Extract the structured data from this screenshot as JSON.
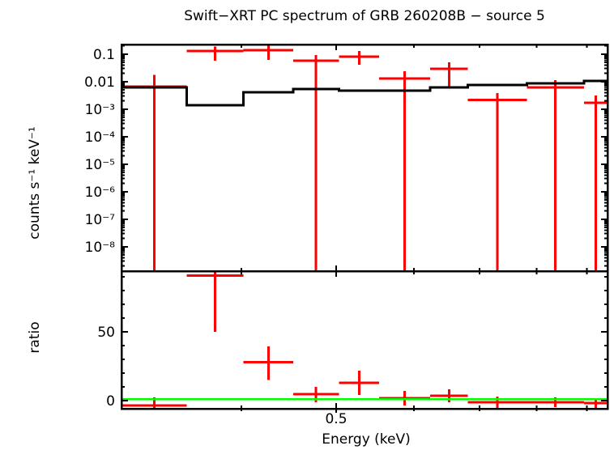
{
  "title": "Swift−XRT PC spectrum of GRB 260208B − source 5",
  "colors": {
    "background": "#ffffff",
    "frame": "#000000",
    "data": "#ff0000",
    "model": "#000000",
    "reference_line": "#00ff00",
    "text": "#000000"
  },
  "chart_data": {
    "type": "scatter",
    "description": "X-ray spectrum: top panel shows background-subtracted count spectrum (red crosses with 1-sigma errors) and folded model (black step line); bottom panel shows data/model ratio with green line at ratio = 1.",
    "xlabel": "Energy (keV)",
    "x_scale": "log",
    "xlim_kev": [
      0.302,
      0.945
    ],
    "x_tick_labeled": {
      "value": 0.5,
      "label": "0.5"
    },
    "x_ticks_minor_kev": [
      0.3,
      0.4,
      0.6,
      0.7,
      0.8,
      0.9
    ],
    "bin_edges_kev": [
      0.302,
      0.352,
      0.402,
      0.452,
      0.503,
      0.553,
      0.623,
      0.681,
      0.782,
      0.894,
      0.945
    ],
    "spectrum_panel": {
      "ylabel": "counts s⁻¹ keV⁻¹",
      "y_scale": "log",
      "ylim": [
        1.3e-09,
        0.225
      ],
      "y_tick_labels": [
        {
          "value": 0.1,
          "label": "0.1"
        },
        {
          "value": 0.01,
          "label": "0.01"
        },
        {
          "value": 0.001,
          "label": "10⁻³"
        },
        {
          "value": 0.0001,
          "label": "10⁻⁴"
        },
        {
          "value": 1e-05,
          "label": "10⁻⁵"
        },
        {
          "value": 1e-06,
          "label": "10⁻⁶"
        },
        {
          "value": 1e-07,
          "label": "10⁻⁷"
        },
        {
          "value": 1e-08,
          "label": "10⁻⁸"
        }
      ],
      "data_points": [
        {
          "e_lo": 0.302,
          "e_hi": 0.352,
          "value": 0.0067,
          "err_hi": 0.018,
          "err_lo": null
        },
        {
          "e_lo": 0.352,
          "e_hi": 0.402,
          "value": 0.131,
          "err_hi": 0.19,
          "err_lo": 0.058
        },
        {
          "e_lo": 0.402,
          "e_hi": 0.452,
          "value": 0.14,
          "err_hi": 0.2,
          "err_lo": 0.062
        },
        {
          "e_lo": 0.452,
          "e_hi": 0.503,
          "value": 0.058,
          "err_hi": 0.093,
          "err_lo": null
        },
        {
          "e_lo": 0.503,
          "e_hi": 0.553,
          "value": 0.082,
          "err_hi": 0.132,
          "err_lo": 0.041
        },
        {
          "e_lo": 0.553,
          "e_hi": 0.623,
          "value": 0.0131,
          "err_hi": 0.024,
          "err_lo": null
        },
        {
          "e_lo": 0.623,
          "e_hi": 0.681,
          "value": 0.0296,
          "err_hi": 0.051,
          "err_lo": 0.0067
        },
        {
          "e_lo": 0.681,
          "e_hi": 0.782,
          "value": 0.0022,
          "err_hi": 0.0038,
          "err_lo": null
        },
        {
          "e_lo": 0.782,
          "e_hi": 0.894,
          "value": 0.0062,
          "err_hi": 0.0114,
          "err_lo": null
        },
        {
          "e_lo": 0.894,
          "e_hi": 0.945,
          "value": 0.0017,
          "err_hi": 0.0032,
          "err_lo": null
        }
      ],
      "model_counts": [
        0.0062,
        0.0014,
        0.0041,
        0.0054,
        0.0047,
        0.0047,
        0.0062,
        0.0076,
        0.0086,
        0.0107
      ]
    },
    "ratio_panel": {
      "ylabel": "ratio",
      "y_scale": "linear",
      "ylim": [
        -5.9,
        94.1
      ],
      "y_ticks_major": [
        0,
        50
      ],
      "y_tick_labels": [
        {
          "value": 0,
          "label": "0"
        },
        {
          "value": 50,
          "label": "50"
        }
      ],
      "y_minor_step": 10,
      "reference_line": 1,
      "data_points": [
        {
          "e_lo": 0.302,
          "e_hi": 0.352,
          "value": -3.5,
          "hi": 2.4,
          "lo": -5.5
        },
        {
          "e_lo": 0.352,
          "e_hi": 0.402,
          "value": 91,
          "hi": 94.1,
          "lo": 50
        },
        {
          "e_lo": 0.402,
          "e_hi": 0.452,
          "value": 28,
          "hi": 39.5,
          "lo": 15
        },
        {
          "e_lo": 0.452,
          "e_hi": 0.503,
          "value": 4.7,
          "hi": 10,
          "lo": -1.2
        },
        {
          "e_lo": 0.503,
          "e_hi": 0.553,
          "value": 12.9,
          "hi": 21.8,
          "lo": 4.1
        },
        {
          "e_lo": 0.553,
          "e_hi": 0.623,
          "value": 1.8,
          "hi": 7.1,
          "lo": -3.5
        },
        {
          "e_lo": 0.623,
          "e_hi": 0.681,
          "value": 3.5,
          "hi": 8.2,
          "lo": -1.2
        },
        {
          "e_lo": 0.681,
          "e_hi": 0.782,
          "value": -1.2,
          "hi": 2.9,
          "lo": -5.3
        },
        {
          "e_lo": 0.782,
          "e_hi": 0.894,
          "value": -1.2,
          "hi": 2.4,
          "lo": -4.7
        },
        {
          "e_lo": 0.894,
          "e_hi": 0.945,
          "value": -1.8,
          "hi": 1.8,
          "lo": -5.3
        }
      ]
    }
  }
}
